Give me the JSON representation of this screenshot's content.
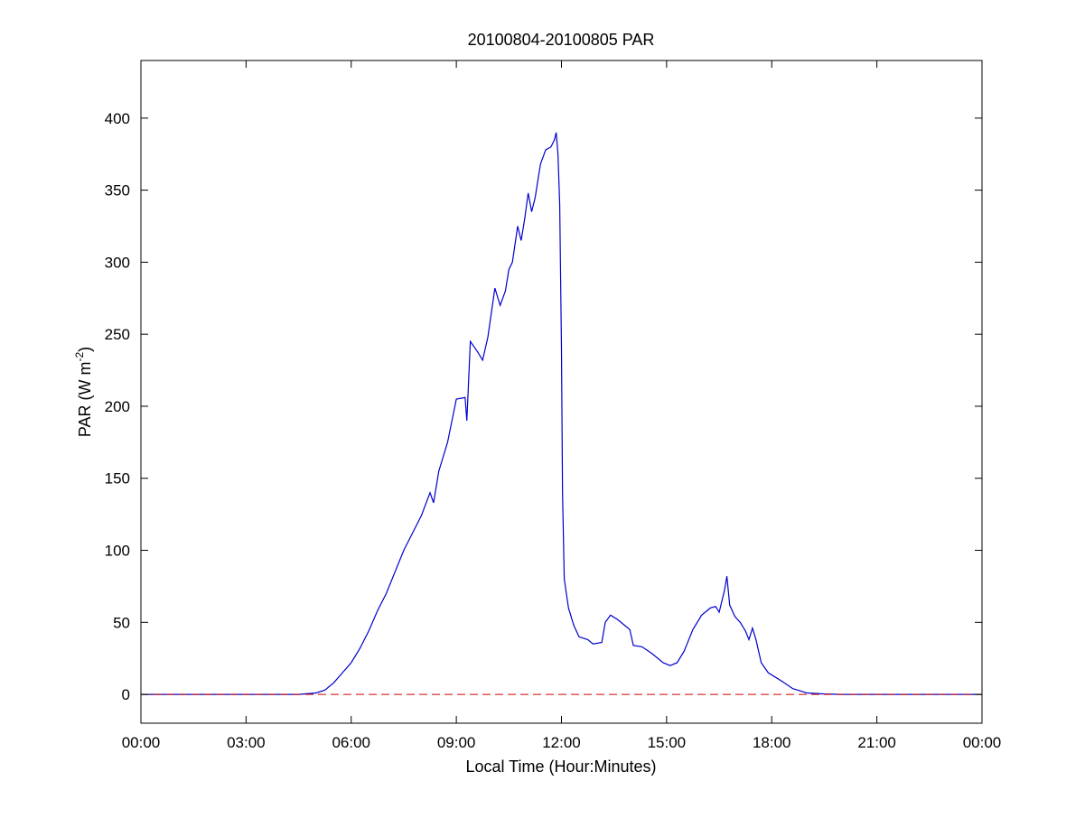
{
  "chart_data": {
    "type": "line",
    "title": "20100804-20100805 PAR",
    "xlabel": "Local Time (Hour:Minutes)",
    "ylabel": {
      "main": "PAR (W m",
      "superscript": "-2",
      "close": ")"
    },
    "xlim": [
      0,
      24
    ],
    "ylim": [
      -20,
      440
    ],
    "x_ticks": [
      {
        "value": 0,
        "label": "00:00"
      },
      {
        "value": 3,
        "label": "03:00"
      },
      {
        "value": 6,
        "label": "06:00"
      },
      {
        "value": 9,
        "label": "09:00"
      },
      {
        "value": 12,
        "label": "12:00"
      },
      {
        "value": 15,
        "label": "15:00"
      },
      {
        "value": 18,
        "label": "18:00"
      },
      {
        "value": 21,
        "label": "21:00"
      },
      {
        "value": 24,
        "label": "00:00"
      }
    ],
    "y_ticks": [
      {
        "value": 0,
        "label": "0"
      },
      {
        "value": 50,
        "label": "50"
      },
      {
        "value": 100,
        "label": "100"
      },
      {
        "value": 150,
        "label": "150"
      },
      {
        "value": 200,
        "label": "200"
      },
      {
        "value": 250,
        "label": "250"
      },
      {
        "value": 300,
        "label": "300"
      },
      {
        "value": 350,
        "label": "350"
      },
      {
        "value": 400,
        "label": "400"
      }
    ],
    "grid": false,
    "series": [
      {
        "color": "#0000cc",
        "style": "solid",
        "points": [
          [
            0,
            0
          ],
          [
            4.5,
            0
          ],
          [
            5.0,
            1
          ],
          [
            5.25,
            3
          ],
          [
            5.5,
            8
          ],
          [
            5.75,
            15
          ],
          [
            6.0,
            22
          ],
          [
            6.25,
            32
          ],
          [
            6.5,
            44
          ],
          [
            6.75,
            58
          ],
          [
            7.0,
            70
          ],
          [
            7.25,
            85
          ],
          [
            7.5,
            100
          ],
          [
            7.75,
            112
          ],
          [
            8.0,
            124
          ],
          [
            8.25,
            140
          ],
          [
            8.35,
            133
          ],
          [
            8.5,
            155
          ],
          [
            8.75,
            175
          ],
          [
            9.0,
            205
          ],
          [
            9.25,
            206
          ],
          [
            9.3,
            190
          ],
          [
            9.4,
            245
          ],
          [
            9.6,
            238
          ],
          [
            9.75,
            232
          ],
          [
            9.9,
            248
          ],
          [
            10.0,
            265
          ],
          [
            10.1,
            282
          ],
          [
            10.25,
            270
          ],
          [
            10.4,
            280
          ],
          [
            10.5,
            295
          ],
          [
            10.6,
            300
          ],
          [
            10.75,
            325
          ],
          [
            10.85,
            315
          ],
          [
            10.95,
            330
          ],
          [
            11.05,
            348
          ],
          [
            11.15,
            335
          ],
          [
            11.25,
            345
          ],
          [
            11.4,
            368
          ],
          [
            11.55,
            378
          ],
          [
            11.7,
            380
          ],
          [
            11.8,
            385
          ],
          [
            11.85,
            390
          ],
          [
            11.9,
            375
          ],
          [
            11.95,
            340
          ],
          [
            12.0,
            240
          ],
          [
            12.03,
            140
          ],
          [
            12.08,
            80
          ],
          [
            12.2,
            60
          ],
          [
            12.35,
            48
          ],
          [
            12.5,
            40
          ],
          [
            12.75,
            38
          ],
          [
            12.9,
            35
          ],
          [
            13.15,
            36
          ],
          [
            13.25,
            50
          ],
          [
            13.4,
            55
          ],
          [
            13.6,
            52
          ],
          [
            13.8,
            48
          ],
          [
            13.95,
            45
          ],
          [
            14.05,
            34
          ],
          [
            14.3,
            33
          ],
          [
            14.6,
            28
          ],
          [
            14.9,
            22
          ],
          [
            15.1,
            20
          ],
          [
            15.3,
            22
          ],
          [
            15.5,
            30
          ],
          [
            15.75,
            45
          ],
          [
            16.0,
            55
          ],
          [
            16.25,
            60
          ],
          [
            16.4,
            61
          ],
          [
            16.5,
            57
          ],
          [
            16.55,
            62
          ],
          [
            16.65,
            72
          ],
          [
            16.72,
            82
          ],
          [
            16.8,
            62
          ],
          [
            16.95,
            54
          ],
          [
            17.1,
            50
          ],
          [
            17.25,
            44
          ],
          [
            17.35,
            38
          ],
          [
            17.45,
            46
          ],
          [
            17.55,
            38
          ],
          [
            17.7,
            22
          ],
          [
            17.9,
            15
          ],
          [
            18.1,
            12
          ],
          [
            18.3,
            9
          ],
          [
            18.6,
            4
          ],
          [
            19.0,
            1
          ],
          [
            19.5,
            0.3
          ],
          [
            20.0,
            0
          ],
          [
            24,
            0
          ]
        ]
      },
      {
        "color": "#cc0000",
        "style": "dashed",
        "points": [
          [
            0,
            0
          ],
          [
            24,
            0
          ]
        ]
      }
    ]
  }
}
